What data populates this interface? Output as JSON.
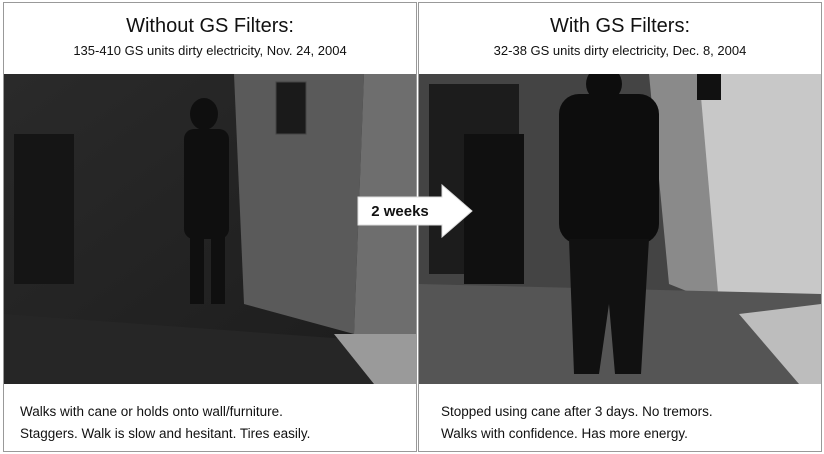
{
  "panels": [
    {
      "title": "Without GS Filters:",
      "subtitle": "135-410 GS units dirty electricity,  Nov. 24, 2004",
      "caption": [
        "Walks with cane or holds onto wall/furniture.",
        "Staggers.  Walk is slow and hesitant.  Tires easily."
      ]
    },
    {
      "title": "With GS Filters:",
      "subtitle": "32-38 GS units dirty electricity,  Dec. 8, 2004",
      "caption": [
        "Stopped using cane after 3 days.  No tremors.",
        "Walks with confidence.   Has more energy."
      ]
    }
  ],
  "arrow": {
    "label": "2 weeks"
  }
}
